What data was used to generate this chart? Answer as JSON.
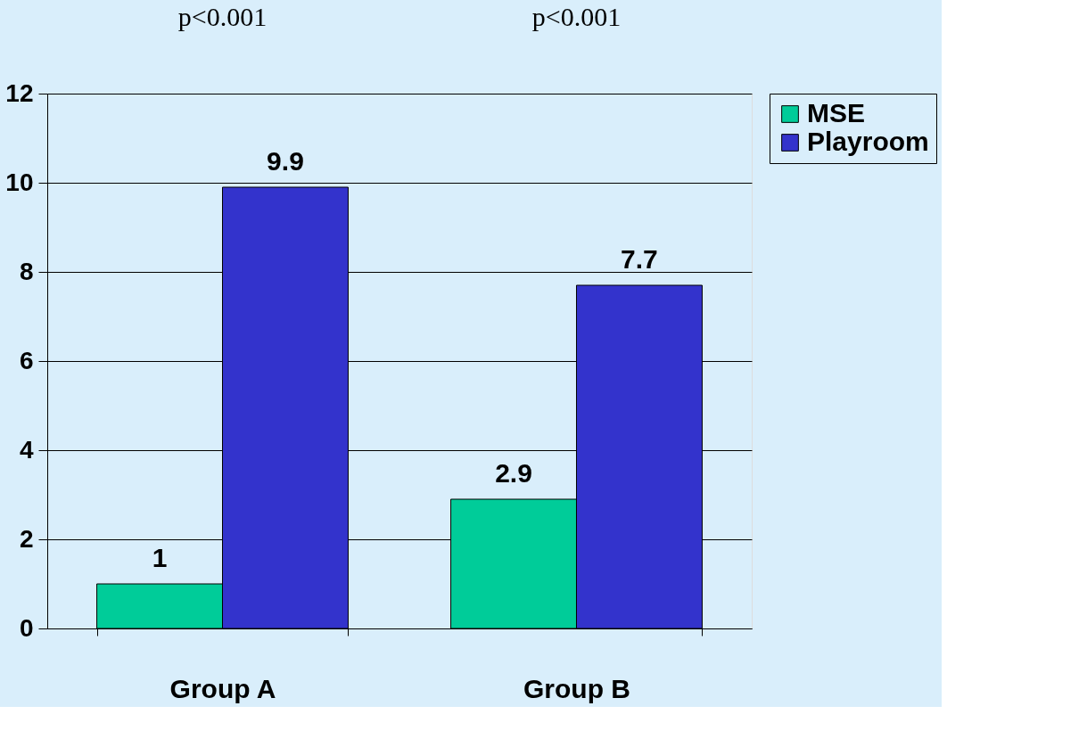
{
  "chart_data": {
    "type": "bar",
    "categories": [
      "Group A",
      "Group B"
    ],
    "series": [
      {
        "name": "MSE",
        "color": "#00cc99",
        "values": [
          1,
          2.9
        ]
      },
      {
        "name": "Playroom",
        "color": "#3333cc",
        "values": [
          9.9,
          7.7
        ]
      }
    ],
    "ylim": [
      0,
      12
    ],
    "yticks": [
      0,
      2,
      4,
      6,
      8,
      10,
      12
    ],
    "grid": "y",
    "legend": "right",
    "data_labels": true,
    "annotations": [
      "p<0.001",
      "p<0.001"
    ]
  }
}
